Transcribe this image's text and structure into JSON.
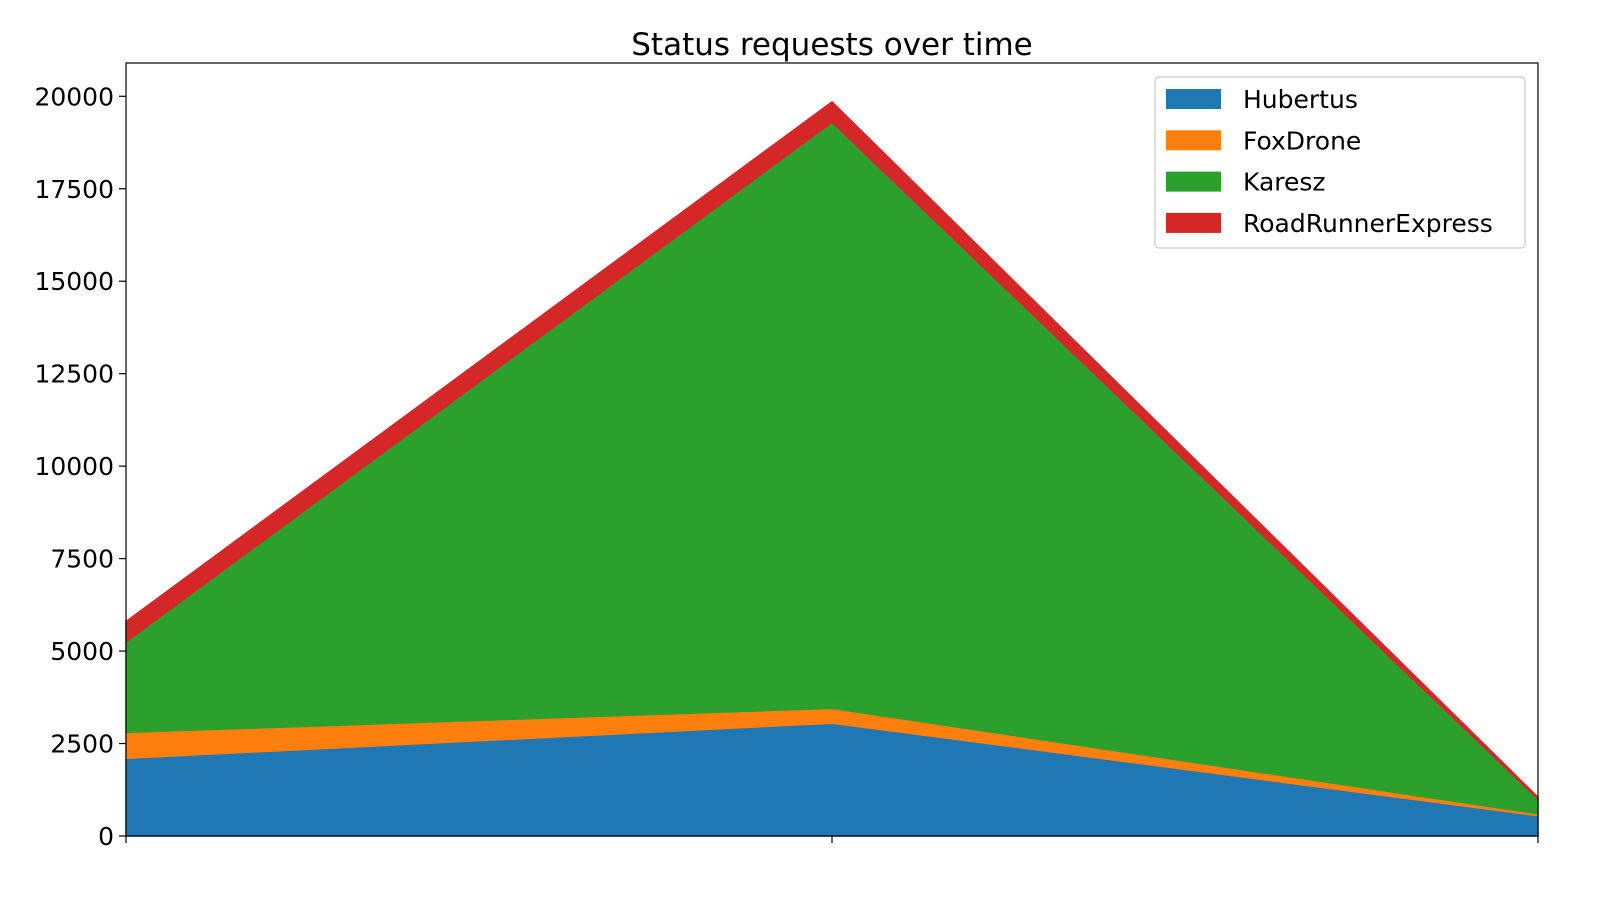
{
  "chart_data": {
    "type": "area",
    "stacked": true,
    "title": "Status requests over time",
    "xlabel": "",
    "ylabel": "",
    "x": [
      0,
      1,
      2
    ],
    "xlim": [
      0,
      2
    ],
    "ylim": [
      0,
      20900
    ],
    "y_ticks": [
      0,
      2500,
      5000,
      7500,
      10000,
      12500,
      15000,
      17500,
      20000
    ],
    "x_ticks": [
      0,
      1,
      2
    ],
    "grid": false,
    "legend_position": "top-right",
    "series": [
      {
        "name": "Hubertus",
        "color": "#1f77b4",
        "values": [
          2100,
          3050,
          550
        ]
      },
      {
        "name": "FoxDrone",
        "color": "#ff7f0e",
        "values": [
          700,
          400,
          50
        ]
      },
      {
        "name": "Karesz",
        "color": "#2ca02c",
        "values": [
          2450,
          15850,
          400
        ]
      },
      {
        "name": "RoadRunnerExpress",
        "color": "#d62728",
        "values": [
          550,
          550,
          50
        ]
      }
    ]
  }
}
